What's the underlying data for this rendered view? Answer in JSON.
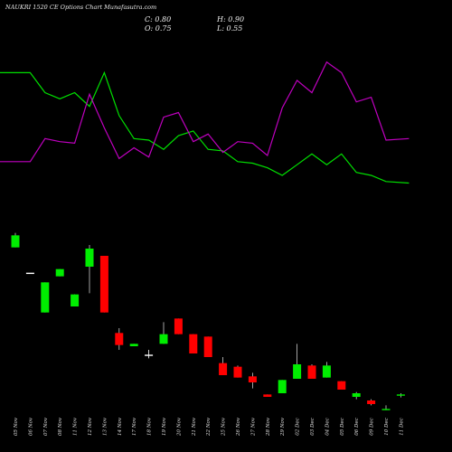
{
  "title": "NAUKRI 1520 CE Options  Chart Munafasutra.com",
  "ohlc": {
    "close": "C: 0.80",
    "open": "O: 0.75",
    "high": "H: 0.90",
    "low": "L: 0.55"
  },
  "chart_data": {
    "type": "candlestick",
    "title": "NAUKRI 1520 CE Options  Chart Munafasutra.com",
    "categories": [
      "05 Nov",
      "06 Nov",
      "07 Nov",
      "08 Nov",
      "11 Nov",
      "12 Nov",
      "13 Nov",
      "14 Nov",
      "17 Nov",
      "18 Nov",
      "19 Nov",
      "20 Nov",
      "21 Nov",
      "22 Nov",
      "25 Nov",
      "26 Nov",
      "27 Nov",
      "28 Nov",
      "29 Nov",
      "02 Dec",
      "03 Dec",
      "04 Dec",
      "05 Dec",
      "06 Dec",
      "09 Dec",
      "10 Dec",
      "11 Dec"
    ],
    "candles": [
      {
        "date": "05 Nov",
        "open": 14.0,
        "high": 14.2,
        "low": 13.0,
        "close": 13.0,
        "color": "green"
      },
      {
        "date": "06 Nov",
        "open": 10.9,
        "high": 10.9,
        "low": 10.9,
        "close": 10.9,
        "color": "white"
      },
      {
        "date": "07 Nov",
        "open": 7.6,
        "high": 10.1,
        "low": 7.6,
        "close": 10.1,
        "color": "green"
      },
      {
        "date": "08 Nov",
        "open": 10.6,
        "high": 11.2,
        "low": 10.6,
        "close": 11.2,
        "color": "green"
      },
      {
        "date": "11 Nov",
        "open": 8.1,
        "high": 9.1,
        "low": 8.1,
        "close": 9.1,
        "color": "green"
      },
      {
        "date": "12 Nov",
        "open": 11.4,
        "high": 13.2,
        "low": 9.2,
        "close": 12.9,
        "color": "green"
      },
      {
        "date": "13 Nov",
        "open": 12.3,
        "high": 12.3,
        "low": 7.6,
        "close": 7.6,
        "color": "red"
      },
      {
        "date": "14 Nov",
        "open": 5.9,
        "high": 6.3,
        "low": 4.5,
        "close": 4.9,
        "color": "red"
      },
      {
        "date": "17 Nov",
        "open": 4.8,
        "high": 5.0,
        "low": 4.8,
        "close": 5.0,
        "color": "green"
      },
      {
        "date": "18 Nov",
        "open": 4.1,
        "high": 4.5,
        "low": 3.8,
        "close": 4.1,
        "color": "white"
      },
      {
        "date": "19 Nov",
        "open": 5.0,
        "high": 6.8,
        "low": 5.0,
        "close": 5.8,
        "color": "green"
      },
      {
        "date": "20 Nov",
        "open": 7.1,
        "high": 7.1,
        "low": 5.8,
        "close": 5.8,
        "color": "red"
      },
      {
        "date": "21 Nov",
        "open": 5.8,
        "high": 5.8,
        "low": 4.2,
        "close": 4.2,
        "color": "red"
      },
      {
        "date": "22 Nov",
        "open": 5.6,
        "high": 5.6,
        "low": 3.9,
        "close": 3.9,
        "color": "red"
      },
      {
        "date": "25 Nov",
        "open": 3.4,
        "high": 3.9,
        "low": 2.4,
        "close": 2.4,
        "color": "red"
      },
      {
        "date": "26 Nov",
        "open": 3.1,
        "high": 3.2,
        "low": 2.2,
        "close": 2.2,
        "color": "red"
      },
      {
        "date": "27 Nov",
        "open": 2.3,
        "high": 2.6,
        "low": 1.3,
        "close": 1.8,
        "color": "red"
      },
      {
        "date": "28 Nov",
        "open": 0.8,
        "high": 0.8,
        "low": 0.6,
        "close": 0.6,
        "color": "red"
      },
      {
        "date": "29 Nov",
        "open": 0.9,
        "high": 2.0,
        "low": 0.9,
        "close": 2.0,
        "color": "green"
      },
      {
        "date": "02 Dec",
        "open": 2.1,
        "high": 5.0,
        "low": 2.1,
        "close": 3.3,
        "color": "green"
      },
      {
        "date": "03 Dec",
        "open": 3.2,
        "high": 3.3,
        "low": 2.1,
        "close": 2.1,
        "color": "red"
      },
      {
        "date": "04 Dec",
        "open": 2.2,
        "high": 3.5,
        "low": 2.2,
        "close": 3.2,
        "color": "green"
      },
      {
        "date": "05 Dec",
        "open": 1.9,
        "high": 1.9,
        "low": 1.2,
        "close": 1.2,
        "color": "red"
      },
      {
        "date": "06 Dec",
        "open": 0.6,
        "high": 1.0,
        "low": 0.4,
        "close": 0.9,
        "color": "green"
      },
      {
        "date": "09 Dec",
        "open": 0.3,
        "high": 0.4,
        "low": -0.1,
        "close": 0.0,
        "color": "red"
      },
      {
        "date": "10 Dec",
        "open": -0.4,
        "high": -0.1,
        "low": -0.5,
        "close": -0.4,
        "color": "green"
      },
      {
        "date": "11 Dec",
        "open": 0.75,
        "high": 0.9,
        "low": 0.55,
        "close": 0.8,
        "color": "green"
      }
    ],
    "series": [
      {
        "color": "#00e000",
        "values": [
          100,
          100,
          87,
          83,
          87,
          78,
          100,
          72,
          57,
          56,
          50,
          59,
          62,
          50,
          49,
          42,
          41,
          38,
          33,
          40,
          47,
          40,
          47,
          35,
          33,
          29,
          28
        ]
      },
      {
        "color": "#c000c0",
        "values": [
          42,
          42,
          57,
          55,
          54,
          86,
          64,
          44,
          51,
          45,
          71,
          74,
          55,
          60,
          48,
          55,
          54,
          46,
          77,
          95,
          87,
          107,
          100,
          81,
          84,
          56,
          57
        ]
      }
    ],
    "grid": false,
    "legend": "none"
  }
}
